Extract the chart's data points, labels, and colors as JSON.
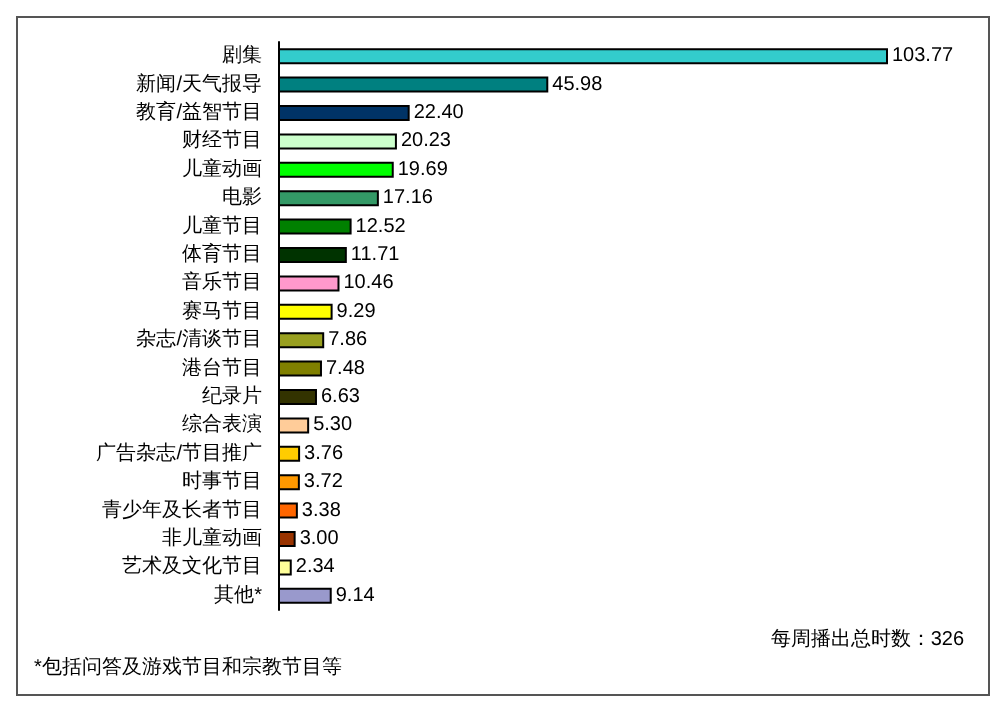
{
  "chart_data": {
    "type": "bar",
    "orientation": "horizontal",
    "categories": [
      "剧集",
      "新闻/天气报导",
      "教育/益智节目",
      "财经节目",
      "儿童动画",
      "电影",
      "儿童节目",
      "体育节目",
      "音乐节目",
      "赛马节目",
      "杂志/清谈节目",
      "港台节目",
      "纪录片",
      "综合表演",
      "广告杂志/节目推广",
      "时事节目",
      "青少年及长者节目",
      "非儿童动画",
      "艺术及文化节目",
      "其他*"
    ],
    "values": [
      103.77,
      45.98,
      22.4,
      20.23,
      19.69,
      17.16,
      12.52,
      11.71,
      10.46,
      9.29,
      7.86,
      7.48,
      6.63,
      5.3,
      3.76,
      3.72,
      3.38,
      3.0,
      2.34,
      9.14
    ],
    "value_labels": [
      "103.77",
      "45.98",
      "22.40",
      "20.23",
      "19.69",
      "17.16",
      "12.52",
      "11.71",
      "10.46",
      "9.29",
      "7.86",
      "7.48",
      "6.63",
      "5.30",
      "3.76",
      "3.72",
      "3.38",
      "3.00",
      "2.34",
      "9.14"
    ],
    "colors": [
      "#33cccc",
      "#008080",
      "#003366",
      "#ccffcc",
      "#00ff00",
      "#339966",
      "#008000",
      "#003300",
      "#ff99cc",
      "#ffff00",
      "#99a020",
      "#808000",
      "#333300",
      "#ffcc99",
      "#ffcc00",
      "#ff9900",
      "#ff6600",
      "#993300",
      "#ffff99",
      "#9999cc"
    ],
    "annotations": [
      "每周播出总时数：326",
      "*包括问答及游戏节目和宗教节目等"
    ]
  }
}
